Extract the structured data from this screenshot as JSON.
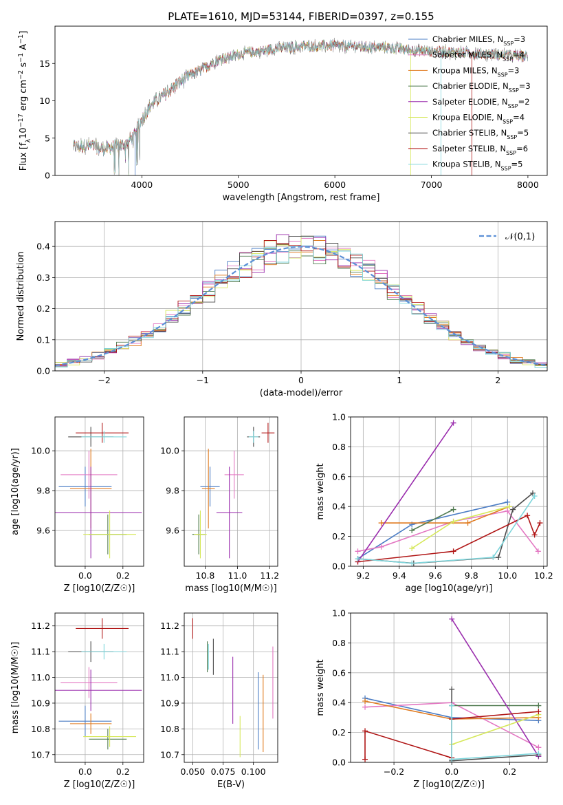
{
  "figure": {
    "title": "PLATE=1610, MJD=53144, FIBERID=0397, z=0.155"
  },
  "models": [
    {
      "name": "Chabrier MILES",
      "nssp": "3",
      "color": "#4a7cc4"
    },
    {
      "name": "Salpeter MILES",
      "nssp": "4",
      "color": "#e377c2"
    },
    {
      "name": "Kroupa MILES",
      "nssp": "3",
      "color": "#e07b20"
    },
    {
      "name": "Chabrier ELODIE",
      "nssp": "3",
      "color": "#4f7a4f"
    },
    {
      "name": "Salpeter ELODIE",
      "nssp": "2",
      "color": "#9b2fae"
    },
    {
      "name": "Kroupa ELODIE",
      "nssp": "4",
      "color": "#d6e85a"
    },
    {
      "name": "Chabrier STELIB",
      "nssp": "5",
      "color": "#4d4d4d"
    },
    {
      "name": "Salpeter STELIB",
      "nssp": "6",
      "color": "#b01515"
    },
    {
      "name": "Kroupa STELIB",
      "nssp": "5",
      "color": "#7fd6dc"
    }
  ],
  "legend_prefix": "N",
  "legend_sub": "SSP",
  "gauss_label": "𝒩(0,1)",
  "gauss_color": "#5b8fd6",
  "chart_data": [
    {
      "id": "spectrum",
      "type": "line",
      "title": "PLATE=1610, MJD=53144, FIBERID=0397, z=0.155",
      "xlabel": "wavelength [Angstrom, rest frame]",
      "ylabel": "Flux [f_λ 10^-17 erg cm^-2 s^-1 A^-1]",
      "xlim": [
        3100,
        8200
      ],
      "ylim": [
        0,
        20
      ],
      "xticks": [
        4000,
        5000,
        6000,
        7000,
        8000
      ],
      "yticks": [
        0,
        5,
        10,
        15
      ],
      "x": [
        3300,
        3400,
        3500,
        3600,
        3700,
        3800,
        3900,
        4000,
        4100,
        4200,
        4300,
        4400,
        4500,
        4600,
        4700,
        4800,
        4900,
        5000,
        5100,
        5200,
        5300,
        5400,
        5500,
        5600,
        5700,
        5800,
        5900,
        6000,
        6100,
        6200,
        6300,
        6400,
        6500,
        6600,
        6700,
        6800,
        6900,
        7000,
        7100,
        7200,
        7300,
        7400,
        7500,
        7600,
        7700,
        7800,
        7900,
        8000
      ],
      "flux": [
        3.8,
        4.0,
        3.9,
        3.5,
        3.8,
        4.1,
        5.0,
        7.5,
        9.5,
        10.5,
        11.5,
        12.5,
        13.5,
        14.0,
        14.8,
        15.5,
        15.8,
        16.2,
        16.5,
        16.6,
        16.8,
        17.0,
        17.1,
        17.2,
        17.3,
        17.3,
        17.4,
        17.4,
        17.3,
        17.3,
        17.2,
        17.1,
        17.2,
        17.1,
        16.9,
        16.8,
        16.7,
        16.6,
        16.6,
        16.5,
        16.5,
        16.4,
        16.3,
        16.3,
        16.2,
        16.1,
        16.0,
        16.0
      ]
    },
    {
      "id": "residuals",
      "type": "histogram",
      "xlabel": "(data-model)/error",
      "ylabel": "Normed distribution",
      "xlim": [
        -2.5,
        2.5
      ],
      "ylim": [
        0,
        0.48
      ],
      "xticks": [
        -2,
        -1,
        0,
        1,
        2
      ],
      "yticks": [
        0.0,
        0.1,
        0.2,
        0.3,
        0.4
      ],
      "bins": 40
    },
    {
      "id": "age_vs_Z",
      "type": "errorbar",
      "xlabel": "Z [log10(Z/Z☉)]",
      "ylabel": "age  [log10(age/yr)]",
      "xlim": [
        -0.16,
        0.31
      ],
      "ylim": [
        9.42,
        10.17
      ],
      "xticks": [
        0.0,
        0.2
      ],
      "yticks": [
        9.6,
        9.8,
        10.0
      ],
      "points": [
        {
          "model": 0,
          "x": 0.0,
          "y": 9.82,
          "xerr": 0.14,
          "yerr": 0.1
        },
        {
          "model": 1,
          "x": 0.02,
          "y": 9.88,
          "xerr": 0.15,
          "yerr": 0.12
        },
        {
          "model": 2,
          "x": 0.03,
          "y": 9.81,
          "xerr": 0.11,
          "yerr": 0.2
        },
        {
          "model": 3,
          "x": 0.12,
          "y": 9.58,
          "xerr": 0.1,
          "yerr": 0.1
        },
        {
          "model": 4,
          "x": 0.03,
          "y": 9.69,
          "xerr": 0.27,
          "yerr": 0.23
        },
        {
          "model": 5,
          "x": 0.13,
          "y": 9.58,
          "xerr": 0.14,
          "yerr": 0.12
        },
        {
          "model": 6,
          "x": 0.03,
          "y": 10.07,
          "xerr": 0.12,
          "yerr": 0.05
        },
        {
          "model": 7,
          "x": 0.09,
          "y": 10.09,
          "xerr": 0.14,
          "yerr": 0.05
        },
        {
          "model": 8,
          "x": 0.1,
          "y": 10.07,
          "xerr": 0.12,
          "yerr": 0.03
        }
      ]
    },
    {
      "id": "age_vs_mass",
      "type": "errorbar",
      "xlabel": "mass [log10(M/M☉)]",
      "ylabel": "",
      "xlim": [
        10.67,
        11.25
      ],
      "ylim": [
        9.42,
        10.17
      ],
      "xticks": [
        10.8,
        11.0,
        11.2
      ],
      "yticks": [
        9.6,
        9.8,
        10.0
      ],
      "points": [
        {
          "model": 0,
          "x": 10.83,
          "y": 9.82,
          "xerr": 0.06,
          "yerr": 0.1
        },
        {
          "model": 1,
          "x": 10.98,
          "y": 9.88,
          "xerr": 0.06,
          "yerr": 0.12
        },
        {
          "model": 2,
          "x": 10.82,
          "y": 9.81,
          "xerr": 0.04,
          "yerr": 0.2
        },
        {
          "model": 3,
          "x": 10.76,
          "y": 9.58,
          "xerr": 0.04,
          "yerr": 0.1
        },
        {
          "model": 4,
          "x": 10.95,
          "y": 9.69,
          "xerr": 0.08,
          "yerr": 0.23
        },
        {
          "model": 5,
          "x": 10.77,
          "y": 9.58,
          "xerr": 0.04,
          "yerr": 0.12
        },
        {
          "model": 6,
          "x": 11.1,
          "y": 10.07,
          "xerr": 0.04,
          "yerr": 0.05
        },
        {
          "model": 7,
          "x": 11.19,
          "y": 10.09,
          "xerr": 0.04,
          "yerr": 0.05
        },
        {
          "model": 8,
          "x": 11.1,
          "y": 10.07,
          "xerr": 0.03,
          "yerr": 0.03
        }
      ]
    },
    {
      "id": "massweight_vs_age",
      "type": "line",
      "xlabel": "age  [log10(age/yr)]",
      "ylabel": "mass weight",
      "xlim": [
        9.13,
        10.22
      ],
      "ylim": [
        0,
        1
      ],
      "xticks": [
        9.2,
        9.4,
        9.6,
        9.8,
        10.0,
        10.2
      ],
      "yticks": [
        0.0,
        0.2,
        0.4,
        0.6,
        0.8,
        1.0
      ],
      "series": [
        {
          "model": 0,
          "x": [
            9.17,
            9.47,
            10.0
          ],
          "y": [
            0.05,
            0.28,
            0.43
          ]
        },
        {
          "model": 1,
          "x": [
            9.17,
            9.3,
            9.7,
            10.0,
            10.17
          ],
          "y": [
            0.1,
            0.13,
            0.3,
            0.37,
            0.1
          ]
        },
        {
          "model": 2,
          "x": [
            9.3,
            9.78,
            10.01
          ],
          "y": [
            0.29,
            0.29,
            0.4
          ]
        },
        {
          "model": 3,
          "x": [
            9.47,
            9.7
          ],
          "y": [
            0.24,
            0.38
          ]
        },
        {
          "model": 4,
          "x": [
            9.17,
            9.7
          ],
          "y": [
            0.03,
            0.96
          ]
        },
        {
          "model": 5,
          "x": [
            9.47,
            9.7,
            10.01
          ],
          "y": [
            0.12,
            0.3,
            0.4
          ]
        },
        {
          "model": 6,
          "x": [
            9.17,
            9.48,
            9.95,
            10.03,
            10.14
          ],
          "y": [
            0.05,
            0.02,
            0.06,
            0.38,
            0.49
          ]
        },
        {
          "model": 7,
          "x": [
            9.17,
            9.7,
            10.11,
            10.15,
            10.18
          ],
          "y": [
            0.03,
            0.1,
            0.34,
            0.21,
            0.29
          ]
        },
        {
          "model": 8,
          "x": [
            9.17,
            9.47,
            9.92,
            10.15
          ],
          "y": [
            0.05,
            0.02,
            0.06,
            0.47
          ]
        }
      ]
    },
    {
      "id": "mass_vs_Z",
      "type": "errorbar",
      "xlabel": "Z [log10(Z/Z☉)]",
      "ylabel": "mass [log10(M/M☉)]",
      "xlim": [
        -0.16,
        0.31
      ],
      "ylim": [
        10.67,
        11.25
      ],
      "xticks": [
        0.0,
        0.2
      ],
      "yticks": [
        10.7,
        10.8,
        10.9,
        11.0,
        11.1,
        11.2
      ],
      "points": [
        {
          "model": 0,
          "x": 0.0,
          "y": 10.83,
          "xerr": 0.14,
          "yerr": 0.06
        },
        {
          "model": 1,
          "x": 0.02,
          "y": 10.98,
          "xerr": 0.15,
          "yerr": 0.06
        },
        {
          "model": 2,
          "x": 0.03,
          "y": 10.82,
          "xerr": 0.11,
          "yerr": 0.04
        },
        {
          "model": 3,
          "x": 0.12,
          "y": 10.76,
          "xerr": 0.1,
          "yerr": 0.04
        },
        {
          "model": 4,
          "x": 0.03,
          "y": 10.95,
          "xerr": 0.27,
          "yerr": 0.08
        },
        {
          "model": 5,
          "x": 0.13,
          "y": 10.77,
          "xerr": 0.14,
          "yerr": 0.04
        },
        {
          "model": 6,
          "x": 0.03,
          "y": 11.1,
          "xerr": 0.12,
          "yerr": 0.04
        },
        {
          "model": 7,
          "x": 0.09,
          "y": 11.19,
          "xerr": 0.14,
          "yerr": 0.04
        },
        {
          "model": 8,
          "x": 0.1,
          "y": 11.1,
          "xerr": 0.12,
          "yerr": 0.03
        }
      ]
    },
    {
      "id": "mass_vs_EBV",
      "type": "errorbar",
      "xlabel": "E(B-V)",
      "ylabel": "",
      "xlim": [
        0.043,
        0.12
      ],
      "ylim": [
        10.67,
        11.25
      ],
      "xticks": [
        0.05,
        0.075,
        0.1
      ],
      "xticklabels": [
        "0.050",
        "0.075",
        "0.100"
      ],
      "yticks": [
        10.7,
        10.8,
        10.9,
        11.0,
        11.1,
        11.2
      ],
      "points": [
        {
          "model": 0,
          "x": 0.104,
          "y": 10.87,
          "xerr": 0,
          "yerr": 0.15
        },
        {
          "model": 1,
          "x": 0.116,
          "y": 10.98,
          "xerr": 0,
          "yerr": 0.14
        },
        {
          "model": 2,
          "x": 0.108,
          "y": 10.86,
          "xerr": 0,
          "yerr": 0.15
        },
        {
          "model": 3,
          "x": 0.062,
          "y": 11.08,
          "xerr": 0,
          "yerr": 0.06
        },
        {
          "model": 4,
          "x": 0.083,
          "y": 10.95,
          "xerr": 0,
          "yerr": 0.13
        },
        {
          "model": 5,
          "x": 0.089,
          "y": 10.77,
          "xerr": 0,
          "yerr": 0.08
        },
        {
          "model": 6,
          "x": 0.067,
          "y": 11.08,
          "xerr": 0,
          "yerr": 0.07
        },
        {
          "model": 7,
          "x": 0.05,
          "y": 11.19,
          "xerr": 0,
          "yerr": 0.04
        },
        {
          "model": 8,
          "x": 0.063,
          "y": 11.08,
          "xerr": 0,
          "yerr": 0.05
        }
      ]
    },
    {
      "id": "massweight_vs_Z",
      "type": "line",
      "xlabel": "Z [log10(Z/Z☉)]",
      "ylabel": "mass weight",
      "xlim": [
        -0.35,
        0.33
      ],
      "ylim": [
        0,
        1
      ],
      "xticks": [
        -0.2,
        0.0,
        0.2
      ],
      "yticks": [
        0.0,
        0.2,
        0.4,
        0.6,
        0.8,
        1.0
      ],
      "series": [
        {
          "model": 0,
          "x": [
            -0.3,
            0.0,
            0.3
          ],
          "y": [
            0.43,
            0.3,
            0.28
          ]
        },
        {
          "model": 1,
          "x": [
            -0.3,
            0.0,
            0.3
          ],
          "y": [
            0.37,
            0.4,
            0.1
          ]
        },
        {
          "model": 2,
          "x": [
            -0.3,
            0.0,
            0.3
          ],
          "y": [
            0.41,
            0.29,
            0.3
          ]
        },
        {
          "model": 3,
          "x": [
            0.0,
            0.3
          ],
          "y": [
            0.38,
            0.38
          ]
        },
        {
          "model": 4,
          "x": [
            0.0,
            0.3
          ],
          "y": [
            0.96,
            0.04
          ]
        },
        {
          "model": 5,
          "x": [
            0.0,
            0.3
          ],
          "y": [
            0.12,
            0.32
          ]
        },
        {
          "model": 6,
          "x": [
            0.0,
            0.0,
            0.3
          ],
          "y": [
            0.49,
            0.01,
            0.05
          ]
        },
        {
          "model": 7,
          "x": [
            -0.3,
            -0.3,
            0.0,
            0.0,
            0.3
          ],
          "y": [
            0.02,
            0.21,
            0.03,
            0.29,
            0.34
          ]
        },
        {
          "model": 8,
          "x": [
            0.0,
            0.0,
            0.3
          ],
          "y": [
            0.38,
            0.02,
            0.06
          ]
        }
      ]
    }
  ]
}
